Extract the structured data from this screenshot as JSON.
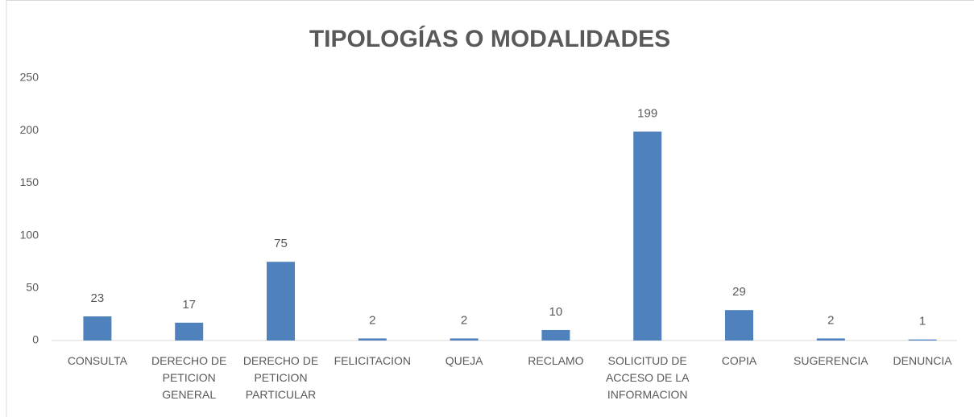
{
  "chart_data": {
    "type": "bar",
    "title": "TIPOLOGÍAS O MODALIDADES",
    "categories": [
      "CONSULTA",
      "DERECHO DE PETICION GENERAL",
      "DERECHO DE PETICION PARTICULAR",
      "FELICITACION",
      "QUEJA",
      "RECLAMO",
      "SOLICITUD DE ACCESO DE LA INFORMACION",
      "COPIA",
      "SUGERENCIA",
      "DENUNCIA"
    ],
    "values": [
      23,
      17,
      75,
      2,
      2,
      10,
      199,
      29,
      2,
      1
    ],
    "color": "#4f81bd",
    "ylim": [
      0,
      250
    ],
    "yticks": [
      0,
      50,
      100,
      150,
      200,
      250
    ],
    "grid": false
  }
}
